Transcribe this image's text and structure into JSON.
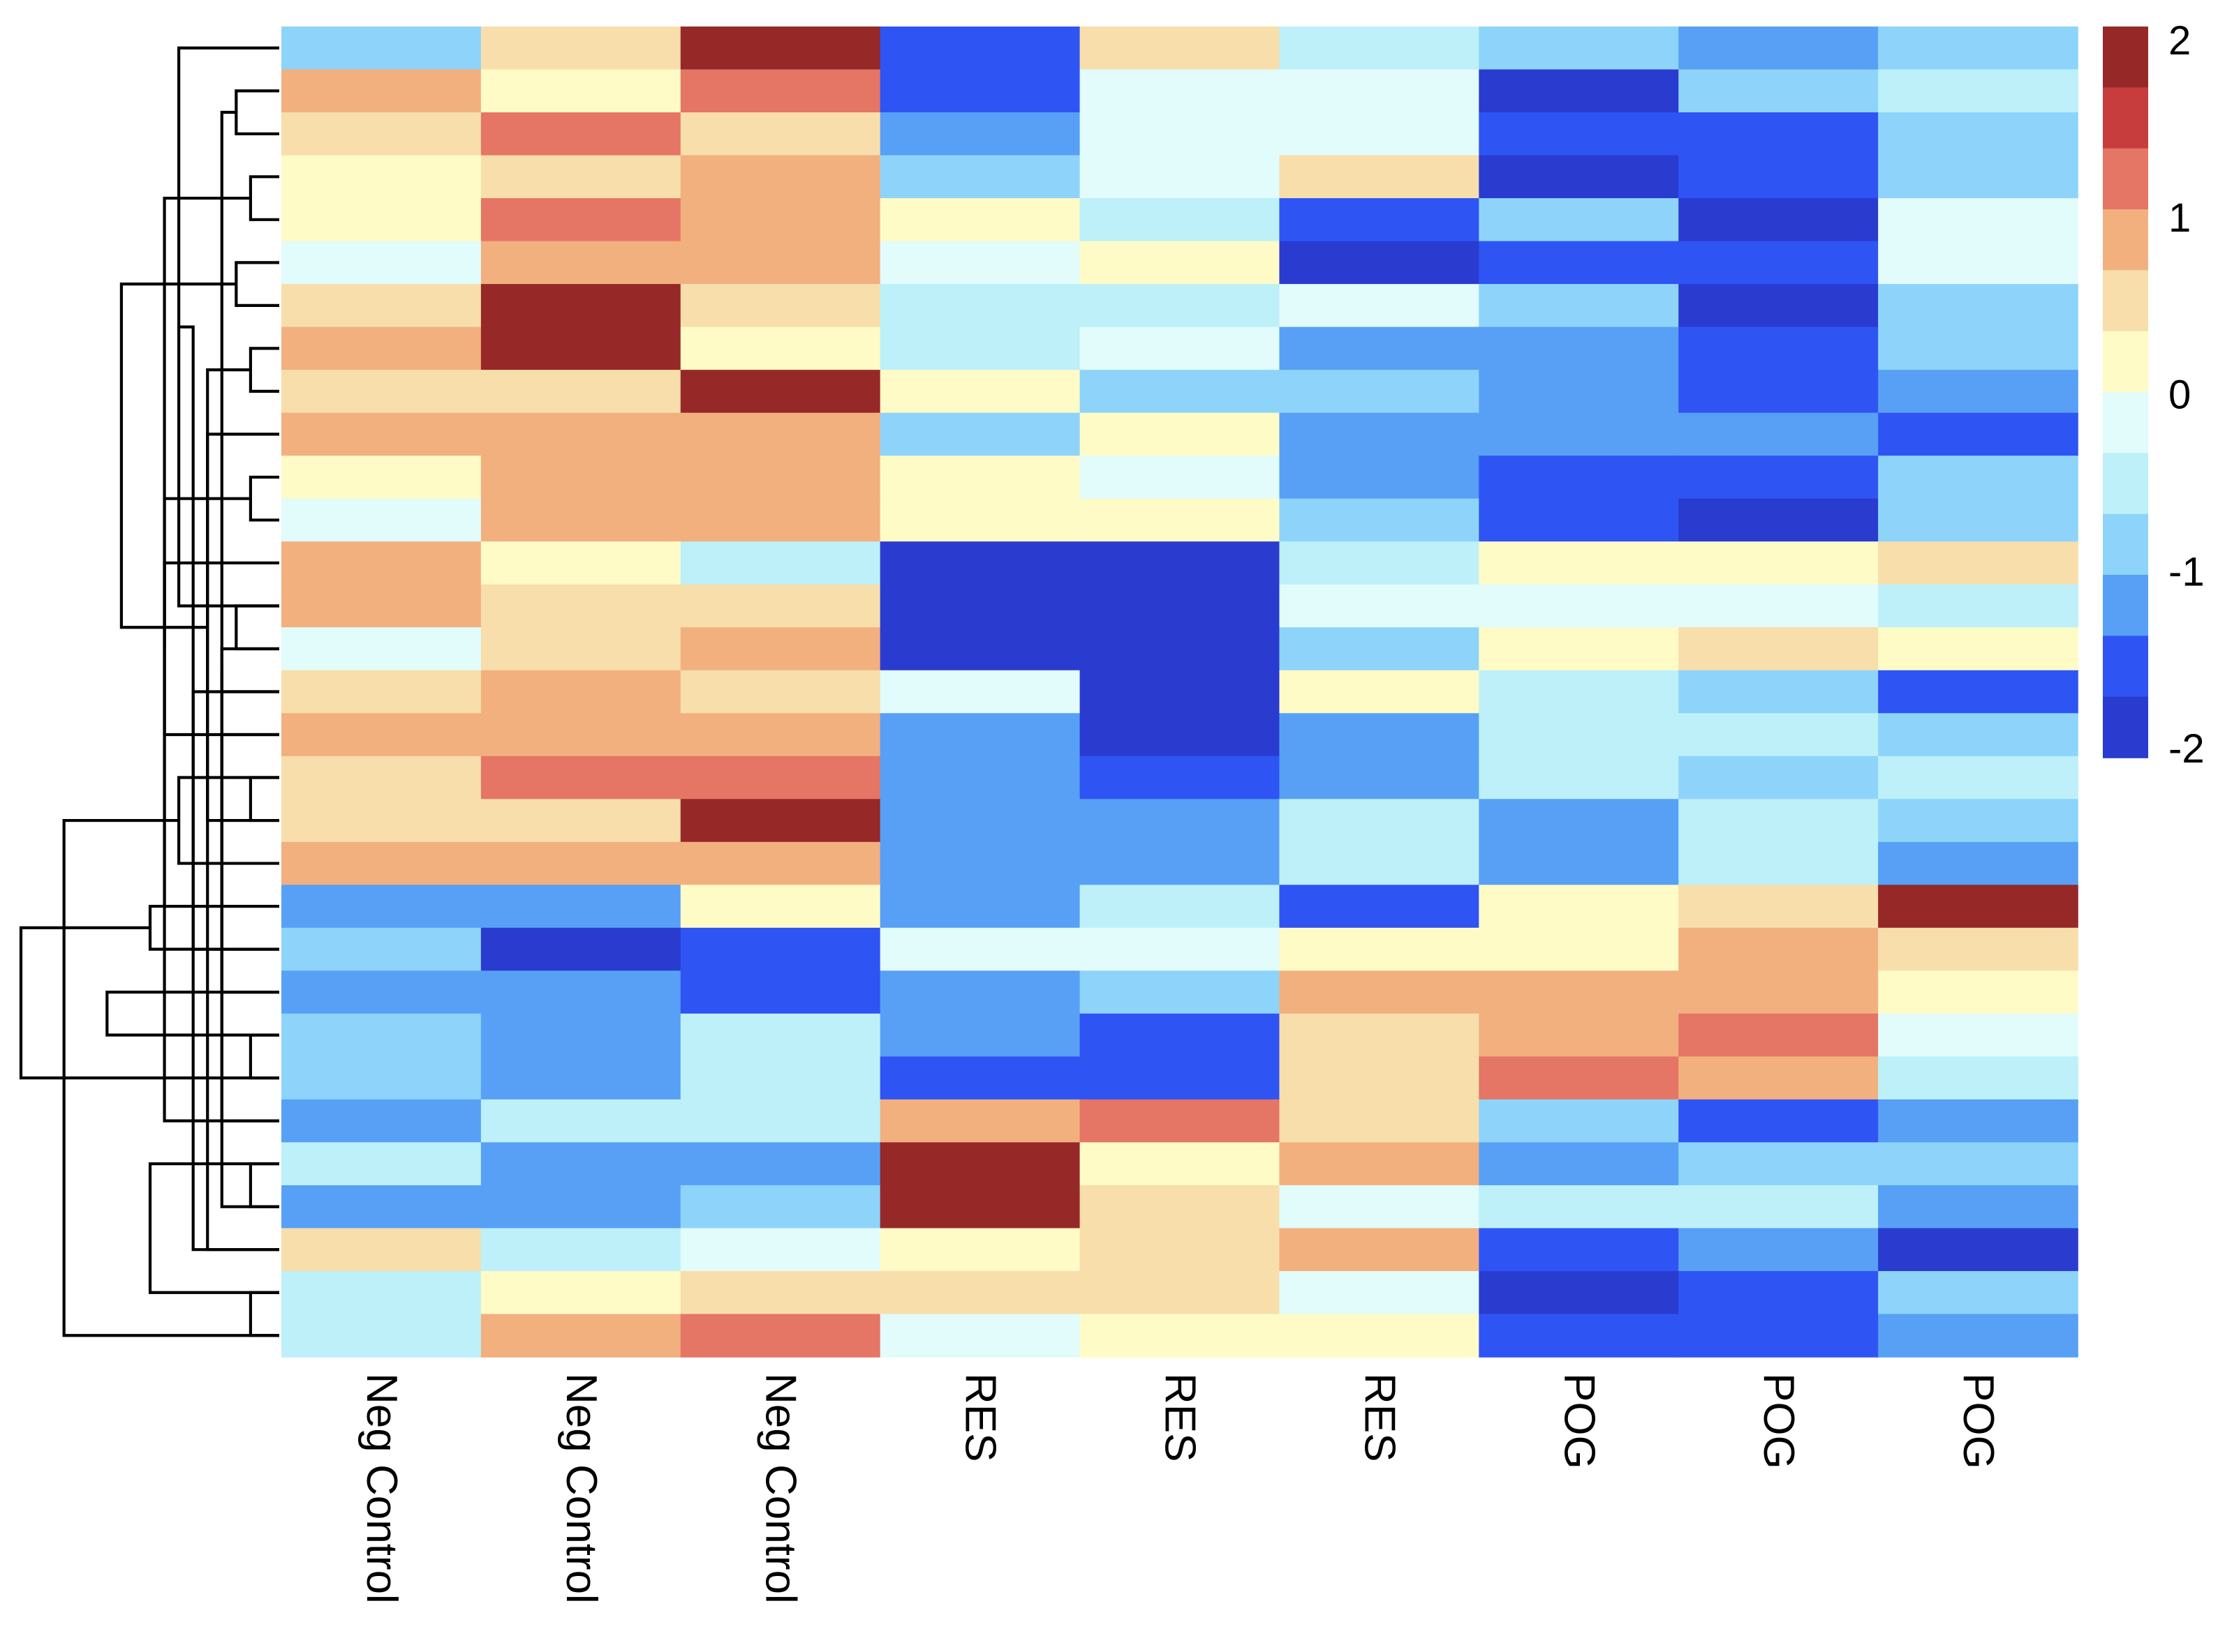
{
  "chart_data": {
    "type": "heatmap",
    "columns": [
      "Neg Control",
      "Neg Control",
      "Neg Control",
      "RES",
      "RES",
      "RES",
      "POG",
      "POG",
      "POG"
    ],
    "values": [
      [
        -0.7,
        1.1,
        2.0,
        -1.3,
        1.1,
        -0.2,
        -0.7,
        -0.9,
        -0.7
      ],
      [
        1.4,
        0.6,
        1.7,
        -1.3,
        0.2,
        0.2,
        -1.8,
        -0.7,
        -0.2
      ],
      [
        1.1,
        1.7,
        1.1,
        -0.9,
        0.2,
        0.2,
        -1.3,
        -1.3,
        -0.7
      ],
      [
        0.6,
        1.1,
        1.4,
        -0.7,
        0.2,
        1.1,
        -1.8,
        -1.3,
        -0.7
      ],
      [
        0.6,
        1.7,
        1.4,
        0.6,
        -0.2,
        -1.3,
        -0.7,
        -1.8,
        0.2
      ],
      [
        0.2,
        1.4,
        1.4,
        0.2,
        0.6,
        -1.8,
        -1.3,
        -1.3,
        0.2
      ],
      [
        1.1,
        2.0,
        1.1,
        -0.2,
        -0.2,
        0.2,
        -0.7,
        -1.8,
        -0.7
      ],
      [
        1.4,
        2.0,
        0.6,
        -0.2,
        0.2,
        -0.9,
        -0.9,
        -1.3,
        -0.7
      ],
      [
        1.1,
        1.1,
        2.0,
        0.6,
        -0.7,
        -0.7,
        -0.9,
        -1.3,
        -0.9
      ],
      [
        1.4,
        1.4,
        1.4,
        -0.7,
        0.6,
        -0.9,
        -0.9,
        -0.9,
        -1.3
      ],
      [
        0.6,
        1.4,
        1.4,
        0.6,
        0.2,
        -0.9,
        -1.3,
        -1.3,
        -0.7
      ],
      [
        0.2,
        1.4,
        1.4,
        0.6,
        0.6,
        -0.7,
        -1.3,
        -1.8,
        -0.7
      ],
      [
        1.4,
        0.6,
        -0.2,
        -1.8,
        -2.0,
        -0.2,
        0.6,
        0.6,
        1.1
      ],
      [
        1.4,
        1.1,
        1.1,
        -2.0,
        -1.8,
        0.2,
        0.2,
        0.2,
        -0.2
      ],
      [
        0.2,
        1.1,
        1.4,
        -1.8,
        -1.8,
        -0.7,
        0.6,
        1.1,
        0.6
      ],
      [
        1.1,
        1.4,
        1.1,
        0.2,
        -1.8,
        0.6,
        -0.2,
        -0.7,
        -1.3
      ],
      [
        1.4,
        1.4,
        1.4,
        -0.9,
        -1.8,
        -0.9,
        -0.2,
        -0.2,
        -0.7
      ],
      [
        1.1,
        1.7,
        1.7,
        -0.9,
        -1.3,
        -0.9,
        -0.2,
        -0.7,
        -0.2
      ],
      [
        1.1,
        1.1,
        2.0,
        -0.9,
        -0.9,
        -0.2,
        -0.9,
        -0.2,
        -0.7
      ],
      [
        1.4,
        1.4,
        1.4,
        -0.9,
        -0.9,
        -0.2,
        -0.9,
        -0.2,
        -0.9
      ],
      [
        -0.9,
        -0.9,
        0.6,
        -0.9,
        -0.2,
        -1.3,
        0.6,
        1.1,
        2.0
      ],
      [
        -0.7,
        -1.8,
        -1.3,
        0.2,
        0.2,
        0.6,
        0.6,
        1.4,
        1.1
      ],
      [
        -0.9,
        -0.9,
        -1.3,
        -0.9,
        -0.7,
        1.4,
        1.4,
        1.4,
        0.6
      ],
      [
        -0.7,
        -0.9,
        -0.2,
        -0.9,
        -1.3,
        1.1,
        1.4,
        1.7,
        0.2
      ],
      [
        -0.7,
        -0.9,
        -0.2,
        -1.3,
        -1.3,
        1.1,
        1.7,
        1.4,
        -0.2
      ],
      [
        -0.9,
        -0.2,
        -0.2,
        1.4,
        1.7,
        1.1,
        -0.7,
        -1.3,
        -0.9
      ],
      [
        -0.2,
        -0.9,
        -0.9,
        2.0,
        0.6,
        1.4,
        -0.9,
        -0.7,
        -0.7
      ],
      [
        -0.9,
        -0.9,
        -0.7,
        2.0,
        1.1,
        0.2,
        -0.2,
        -0.2,
        -0.9
      ],
      [
        1.1,
        -0.2,
        0.2,
        0.6,
        1.1,
        1.4,
        -1.3,
        -0.9,
        -1.8
      ],
      [
        -0.2,
        0.6,
        1.1,
        1.1,
        1.1,
        0.2,
        -1.8,
        -1.3,
        -0.7
      ],
      [
        -0.2,
        1.4,
        1.7,
        0.2,
        0.6,
        0.6,
        -1.3,
        -1.3,
        -0.9
      ]
    ],
    "value_range": [
      -2,
      2
    ],
    "color_scale": {
      "breaks": [
        -2.0,
        -1.6,
        -1.2,
        -0.8,
        -0.4,
        0.0,
        0.4,
        0.8,
        1.2,
        1.6,
        2.0
      ],
      "colors": [
        "#2a3bd0",
        "#2f54f4",
        "#57a0f6",
        "#8ed4fa",
        "#bdf0f9",
        "#e2fbfb",
        "#fefbc7",
        "#f7deab",
        "#f2b07f",
        "#e57565",
        "#c73c3c",
        "#962828"
      ]
    },
    "legend": {
      "ticks": [
        2,
        1,
        0,
        -1,
        -2
      ],
      "tick_labels": [
        "2",
        "1",
        "0",
        "-1",
        "-2"
      ],
      "position": "right"
    },
    "row_dendrogram": {
      "position": "left",
      "merges": [
        [
          1,
          2,
          0.15
        ],
        [
          0,
          13,
          0.35
        ],
        [
          3,
          4,
          0.1
        ],
        [
          5,
          6,
          0.15
        ],
        [
          14,
          15,
          0.2
        ],
        [
          12,
          16,
          0.4
        ],
        [
          7,
          8,
          0.1
        ],
        [
          10,
          11,
          0.1
        ],
        [
          9,
          18,
          0.25
        ],
        [
          17,
          19,
          0.35
        ],
        [
          20,
          21,
          0.45
        ],
        [
          22,
          23,
          0.6
        ],
        [
          13,
          14,
          0.15
        ],
        [
          12,
          25,
          0.4
        ],
        [
          17,
          18,
          0.1
        ],
        [
          16,
          27,
          0.2
        ],
        [
          15,
          28,
          0.3
        ],
        [
          26,
          29,
          0.45
        ],
        [
          23,
          24,
          0.1
        ],
        [
          22,
          31,
          0.2
        ],
        [
          21,
          32,
          0.3
        ],
        [
          20,
          33,
          0.4
        ],
        [
          26,
          27,
          0.1
        ],
        [
          25,
          35,
          0.2
        ],
        [
          29,
          30,
          0.1
        ],
        [
          28,
          37,
          0.25
        ],
        [
          36,
          38,
          0.4
        ],
        [
          34,
          39,
          0.55
        ],
        [
          30,
          40,
          0.75
        ],
        [
          24,
          41,
          0.9
        ]
      ]
    },
    "title": "",
    "xlabel": "",
    "ylabel": ""
  }
}
